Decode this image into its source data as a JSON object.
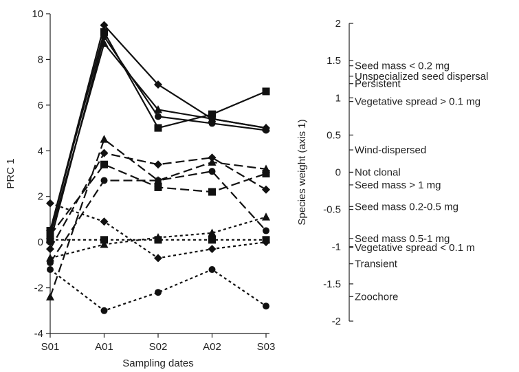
{
  "chart_data": [
    {
      "type": "line",
      "xlabel": "Sampling dates",
      "ylabel": "PRC 1",
      "categories": [
        "S01",
        "A01",
        "S02",
        "A02",
        "S03"
      ],
      "ylim": [
        -4,
        10
      ],
      "yticks": [
        "-4",
        "-2",
        "0",
        "2",
        "4",
        "6",
        "8",
        "10"
      ],
      "grid": false,
      "series": [
        {
          "line": "solid",
          "marker": "diamond",
          "values": [
            0.5,
            9.5,
            6.9,
            5.4,
            5.0
          ]
        },
        {
          "line": "solid",
          "marker": "square",
          "values": [
            0.5,
            9.2,
            5.0,
            5.6,
            6.6
          ]
        },
        {
          "line": "solid",
          "marker": "triangle",
          "values": [
            0.3,
            8.7,
            5.8,
            5.4,
            5.0
          ]
        },
        {
          "line": "solid",
          "marker": "circle",
          "values": [
            0.0,
            9.0,
            5.5,
            5.2,
            4.9
          ]
        },
        {
          "line": "dashed",
          "marker": "triangle",
          "values": [
            -2.4,
            4.5,
            2.7,
            3.5,
            3.2
          ]
        },
        {
          "line": "dashed",
          "marker": "diamond",
          "values": [
            -0.3,
            3.9,
            3.4,
            3.7,
            2.3
          ]
        },
        {
          "line": "dashed",
          "marker": "square",
          "values": [
            0.3,
            3.4,
            2.4,
            2.2,
            3.0
          ]
        },
        {
          "line": "dashed",
          "marker": "circle",
          "values": [
            -0.9,
            2.7,
            2.7,
            3.1,
            0.5
          ]
        },
        {
          "line": "dotted",
          "marker": "diamond",
          "values": [
            1.7,
            0.9,
            -0.7,
            -0.3,
            0.0
          ]
        },
        {
          "line": "dotted",
          "marker": "square",
          "values": [
            0.1,
            0.1,
            0.1,
            0.1,
            0.1
          ]
        },
        {
          "line": "dotted",
          "marker": "triangle",
          "values": [
            -0.7,
            -0.1,
            0.2,
            0.4,
            1.1
          ]
        },
        {
          "line": "dotted",
          "marker": "circle",
          "values": [
            -1.2,
            -3.0,
            -2.2,
            -1.2,
            -2.8
          ]
        }
      ]
    },
    {
      "type": "scatter",
      "ylabel": "Species weight (axis 1)",
      "ylim": [
        -2,
        2
      ],
      "yticks": [
        "-2",
        "-1.5",
        "-1",
        "-0.5",
        "0",
        "0.5",
        "1",
        "1.5",
        "2"
      ],
      "traits": [
        {
          "label": "Seed mass < 0.2 mg",
          "value": 1.43
        },
        {
          "label": "Unspecialized seed dispersal",
          "value": 1.29
        },
        {
          "label": "Persistent",
          "value": 1.19
        },
        {
          "label": "Vegetative spread > 0.1 mg",
          "value": 0.95
        },
        {
          "label": "Wind-dispersed",
          "value": 0.3
        },
        {
          "label": "Not clonal",
          "value": 0.0
        },
        {
          "label": "Seed mass > 1 mg",
          "value": -0.17
        },
        {
          "label": "Seed mass 0.2-0.5 mg",
          "value": -0.46
        },
        {
          "label": "Seed mass 0.5-1 mg",
          "value": -0.89
        },
        {
          "label": "Vegetative spread < 0.1 m",
          "value": -1.01
        },
        {
          "label": "Transient",
          "value": -1.23
        },
        {
          "label": "Zoochore",
          "value": -1.67
        }
      ]
    }
  ]
}
